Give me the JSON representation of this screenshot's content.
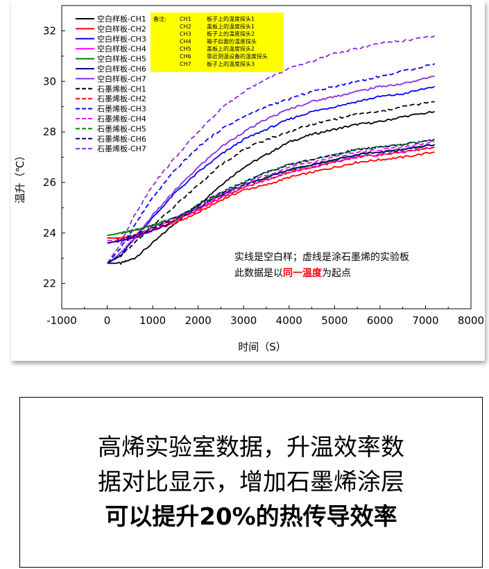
{
  "chart_data": {
    "type": "line",
    "title": "",
    "xlabel": "时间（S）",
    "ylabel": "温升（℃）",
    "xlim": [
      -1000,
      8000
    ],
    "ylim": [
      21,
      33
    ],
    "xticks": [
      "-1000",
      "0",
      "1000",
      "2000",
      "3000",
      "4000",
      "5000",
      "6000",
      "7000",
      "8000"
    ],
    "yticks": [
      "22",
      "24",
      "26",
      "28",
      "30",
      "32"
    ],
    "grid": false,
    "legend_position": "top-left",
    "series": [
      {
        "name": "空白样板-CH1",
        "color": "#000000",
        "dash": "solid",
        "x": [
          0,
          300,
          600,
          1000,
          1500,
          2000,
          2500,
          3000,
          3500,
          4000,
          4500,
          5000,
          5500,
          6000,
          6500,
          7200
        ],
        "y": [
          22.8,
          22.8,
          23.0,
          23.6,
          24.4,
          25.1,
          25.9,
          26.6,
          27.1,
          27.6,
          27.9,
          28.1,
          28.3,
          28.4,
          28.6,
          28.8
        ]
      },
      {
        "name": "空白样板-CH2",
        "color": "#ff0000",
        "dash": "solid",
        "x": [
          0,
          300,
          600,
          1000,
          1500,
          2000,
          2500,
          3000,
          3500,
          4000,
          4500,
          5000,
          5500,
          6000,
          6500,
          7200
        ],
        "y": [
          23.8,
          23.8,
          23.9,
          24.1,
          24.4,
          24.8,
          25.3,
          25.7,
          25.9,
          26.2,
          26.4,
          26.6,
          26.8,
          26.9,
          27.0,
          27.2
        ]
      },
      {
        "name": "空白样板-CH3",
        "color": "#0000ff",
        "dash": "solid",
        "x": [
          0,
          300,
          600,
          1000,
          1500,
          2000,
          2500,
          3000,
          3500,
          4000,
          4500,
          5000,
          5500,
          6000,
          6500,
          7200
        ],
        "y": [
          22.8,
          23.1,
          23.8,
          24.6,
          25.6,
          26.4,
          27.1,
          27.7,
          28.1,
          28.5,
          28.8,
          29.0,
          29.2,
          29.4,
          29.5,
          29.8
        ]
      },
      {
        "name": "空白样板-CH4",
        "color": "#ff00ff",
        "dash": "solid",
        "x": [
          0,
          300,
          600,
          1000,
          1500,
          2000,
          2500,
          3000,
          3500,
          4000,
          4500,
          5000,
          5500,
          6000,
          6500,
          7200
        ],
        "y": [
          23.6,
          23.7,
          23.8,
          24.1,
          24.5,
          24.9,
          25.4,
          25.8,
          26.1,
          26.4,
          26.6,
          26.8,
          27.0,
          27.1,
          27.2,
          27.4
        ]
      },
      {
        "name": "空白样板-CH5",
        "color": "#008000",
        "dash": "solid",
        "x": [
          0,
          300,
          600,
          1000,
          1500,
          2000,
          2500,
          3000,
          3500,
          4000,
          4500,
          5000,
          5500,
          6000,
          6500,
          7200
        ],
        "y": [
          23.9,
          24.0,
          24.1,
          24.3,
          24.6,
          25.0,
          25.5,
          25.9,
          26.2,
          26.5,
          26.7,
          26.9,
          27.1,
          27.2,
          27.3,
          27.5
        ]
      },
      {
        "name": "空白样板-CH6",
        "color": "#000080",
        "dash": "solid",
        "x": [
          0,
          300,
          600,
          1000,
          1500,
          2000,
          2500,
          3000,
          3500,
          4000,
          4500,
          5000,
          5500,
          6000,
          6500,
          7200
        ],
        "y": [
          23.6,
          23.7,
          23.8,
          24.1,
          24.5,
          25.0,
          25.5,
          25.9,
          26.2,
          26.5,
          26.7,
          26.9,
          27.1,
          27.2,
          27.3,
          27.5
        ]
      },
      {
        "name": "空白样板-CH7",
        "color": "#8a2be2",
        "dash": "solid",
        "x": [
          0,
          300,
          600,
          1000,
          1500,
          2000,
          2500,
          3000,
          3500,
          4000,
          4500,
          5000,
          5500,
          6000,
          6500,
          7200
        ],
        "y": [
          22.8,
          23.2,
          23.8,
          24.7,
          25.7,
          26.6,
          27.4,
          28.0,
          28.5,
          28.9,
          29.2,
          29.4,
          29.6,
          29.8,
          29.9,
          30.2
        ]
      },
      {
        "name": "石墨烯板-CH1",
        "color": "#000000",
        "dash": "dashed",
        "x": [
          0,
          300,
          600,
          1000,
          1500,
          2000,
          2500,
          3000,
          3500,
          4000,
          4500,
          5000,
          5500,
          6000,
          6500,
          7200
        ],
        "y": [
          22.8,
          23.1,
          23.6,
          24.3,
          25.1,
          25.9,
          26.7,
          27.3,
          27.7,
          28.0,
          28.3,
          28.5,
          28.7,
          28.8,
          29.0,
          29.2
        ]
      },
      {
        "name": "石墨烯板-CH2",
        "color": "#ff0000",
        "dash": "dashed",
        "x": [
          0,
          300,
          600,
          1000,
          1500,
          2000,
          2500,
          3000,
          3500,
          4000,
          4500,
          5000,
          5500,
          6000,
          6500,
          7200
        ],
        "y": [
          23.8,
          23.8,
          23.9,
          24.2,
          24.5,
          24.9,
          25.4,
          25.8,
          26.1,
          26.4,
          26.6,
          26.8,
          27.0,
          27.1,
          27.2,
          27.4
        ]
      },
      {
        "name": "石墨烯板-CH3",
        "color": "#0000ff",
        "dash": "dashed",
        "x": [
          0,
          300,
          600,
          1000,
          1500,
          2000,
          2500,
          3000,
          3500,
          4000,
          4500,
          5000,
          5500,
          6000,
          6500,
          7200
        ],
        "y": [
          22.8,
          23.4,
          24.3,
          25.4,
          26.5,
          27.4,
          28.1,
          28.6,
          29.0,
          29.3,
          29.6,
          29.8,
          30.0,
          30.2,
          30.4,
          30.7
        ]
      },
      {
        "name": "石墨烯板-CH4",
        "color": "#ff00ff",
        "dash": "dashed",
        "x": [
          0,
          300,
          600,
          1000,
          1500,
          2000,
          2500,
          3000,
          3500,
          4000,
          4500,
          5000,
          5500,
          6000,
          6500,
          7200
        ],
        "y": [
          23.7,
          23.7,
          23.9,
          24.2,
          24.6,
          25.0,
          25.5,
          25.9,
          26.3,
          26.6,
          26.8,
          27.0,
          27.2,
          27.3,
          27.4,
          27.6
        ]
      },
      {
        "name": "石墨烯板-CH5",
        "color": "#008000",
        "dash": "dashed",
        "x": [
          0,
          300,
          600,
          1000,
          1500,
          2000,
          2500,
          3000,
          3500,
          4000,
          4500,
          5000,
          5500,
          6000,
          6500,
          7200
        ],
        "y": [
          23.9,
          24.0,
          24.1,
          24.3,
          24.6,
          25.1,
          25.6,
          26.0,
          26.4,
          26.7,
          26.9,
          27.1,
          27.3,
          27.4,
          27.5,
          27.7
        ]
      },
      {
        "name": "石墨烯板-CH6",
        "color": "#000080",
        "dash": "dashed",
        "x": [
          0,
          300,
          600,
          1000,
          1500,
          2000,
          2500,
          3000,
          3500,
          4000,
          4500,
          5000,
          5500,
          6000,
          6500,
          7200
        ],
        "y": [
          23.6,
          23.7,
          23.9,
          24.2,
          24.6,
          25.1,
          25.6,
          26.0,
          26.4,
          26.7,
          26.9,
          27.1,
          27.3,
          27.4,
          27.5,
          27.7
        ]
      },
      {
        "name": "石墨烯板-CH7",
        "color": "#8a2be2",
        "dash": "dashed",
        "x": [
          0,
          300,
          600,
          1000,
          1500,
          2000,
          2500,
          3000,
          3500,
          4000,
          4500,
          5000,
          5500,
          6000,
          6500,
          7200
        ],
        "y": [
          22.8,
          23.6,
          24.7,
          25.9,
          27.0,
          28.0,
          28.9,
          29.6,
          30.1,
          30.5,
          30.8,
          31.1,
          31.3,
          31.5,
          31.6,
          31.8
        ]
      }
    ],
    "note_box": {
      "title": "备注:",
      "rows": [
        {
          "ch": "CH1",
          "desc": "板子上的温度探头1"
        },
        {
          "ch": "CH2",
          "desc": "盖板上的温度探头1"
        },
        {
          "ch": "CH3",
          "desc": "板子上的温度探头2"
        },
        {
          "ch": "CH4",
          "desc": "箱子后面的温度探头"
        },
        {
          "ch": "CH5",
          "desc": "盖板上的温度探头2"
        },
        {
          "ch": "CH6",
          "desc": "靠近测温设备的温度探头"
        },
        {
          "ch": "CH7",
          "desc": "板子上的温度探头3"
        }
      ]
    },
    "annotation": {
      "line1": "实线是空白样；虚线是涂石墨烯的实验板",
      "line2_prefix": "此数据是以",
      "line2_highlight": "同一温度",
      "line2_suffix": "为起点",
      "highlight_color": "#ff0000"
    }
  },
  "summary": {
    "line1": "高烯实验室数据，升温效率数",
    "line2": "据对比显示，增加石墨烯涂层",
    "line3": "可以提升20%的热传导效率"
  }
}
